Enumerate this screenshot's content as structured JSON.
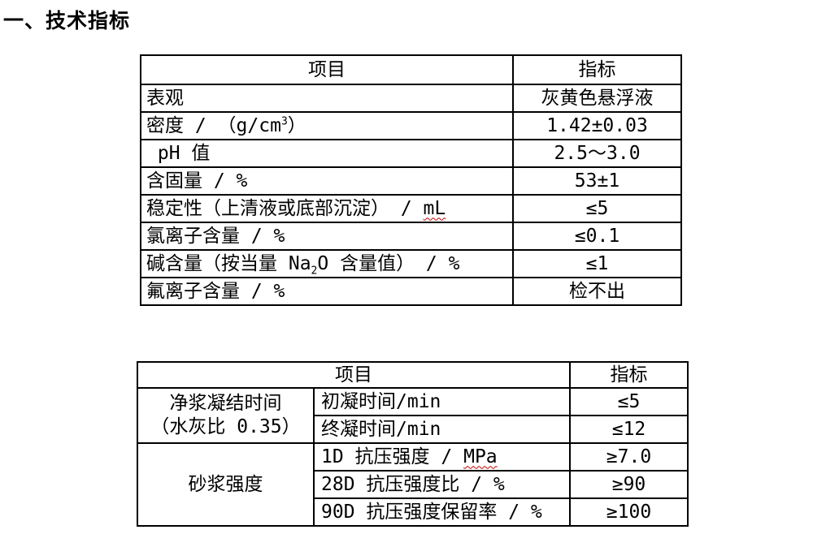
{
  "page": {
    "background_color": "#ffffff",
    "text_color": "#000000",
    "border_color": "#000000",
    "spellcheck_underline_color": "#c00000"
  },
  "heading": "一、技术指标",
  "table1": {
    "columns": {
      "item": "项目",
      "value": "指标"
    },
    "rows": [
      {
        "item": [
          {
            "t": "表观"
          }
        ],
        "value": "灰黄色悬浮液"
      },
      {
        "item": [
          {
            "t": "密度 / （g/cm"
          },
          {
            "t": "3",
            "fmt": "sup"
          },
          {
            "t": "）"
          }
        ],
        "value": "1.42±0.03"
      },
      {
        "item": [
          {
            "t": " pH 值"
          }
        ],
        "value": "2.5～3.0"
      },
      {
        "item": [
          {
            "t": "含固量 / %"
          }
        ],
        "value": "53±1"
      },
      {
        "item": [
          {
            "t": "稳定性（上清液或底部沉淀） / "
          },
          {
            "t": "mL",
            "fmt": "squiggle"
          }
        ],
        "value": "≤5"
      },
      {
        "item": [
          {
            "t": "氯离子含量 / %"
          }
        ],
        "value": "≤0.1"
      },
      {
        "item": [
          {
            "t": "碱含量（按当量 Na"
          },
          {
            "t": "2",
            "fmt": "sub"
          },
          {
            "t": "O 含量值） / %"
          }
        ],
        "value": "≤1"
      },
      {
        "item": [
          {
            "t": "氟离子含量 / %"
          }
        ],
        "value": "检不出"
      }
    ]
  },
  "table2": {
    "columns": {
      "item": "项目",
      "value": "指标"
    },
    "groups": [
      {
        "label": "净浆凝结时间\n（水灰比 0.35）",
        "rows": [
          {
            "item": [
              {
                "t": "初凝时间/min"
              }
            ],
            "value": "≤5"
          },
          {
            "item": [
              {
                "t": "终凝时间/min"
              }
            ],
            "value": "≤12"
          }
        ]
      },
      {
        "label": "砂浆强度",
        "rows": [
          {
            "item": [
              {
                "t": "1D 抗压强度 / "
              },
              {
                "t": "MPa",
                "fmt": "squiggle"
              }
            ],
            "value": "≥7.0"
          },
          {
            "item": [
              {
                "t": "28D 抗压强度比 / %"
              }
            ],
            "value": "≥90"
          },
          {
            "item": [
              {
                "t": "90D 抗压强度保留率 / %"
              }
            ],
            "value": "≥100"
          }
        ]
      }
    ]
  }
}
